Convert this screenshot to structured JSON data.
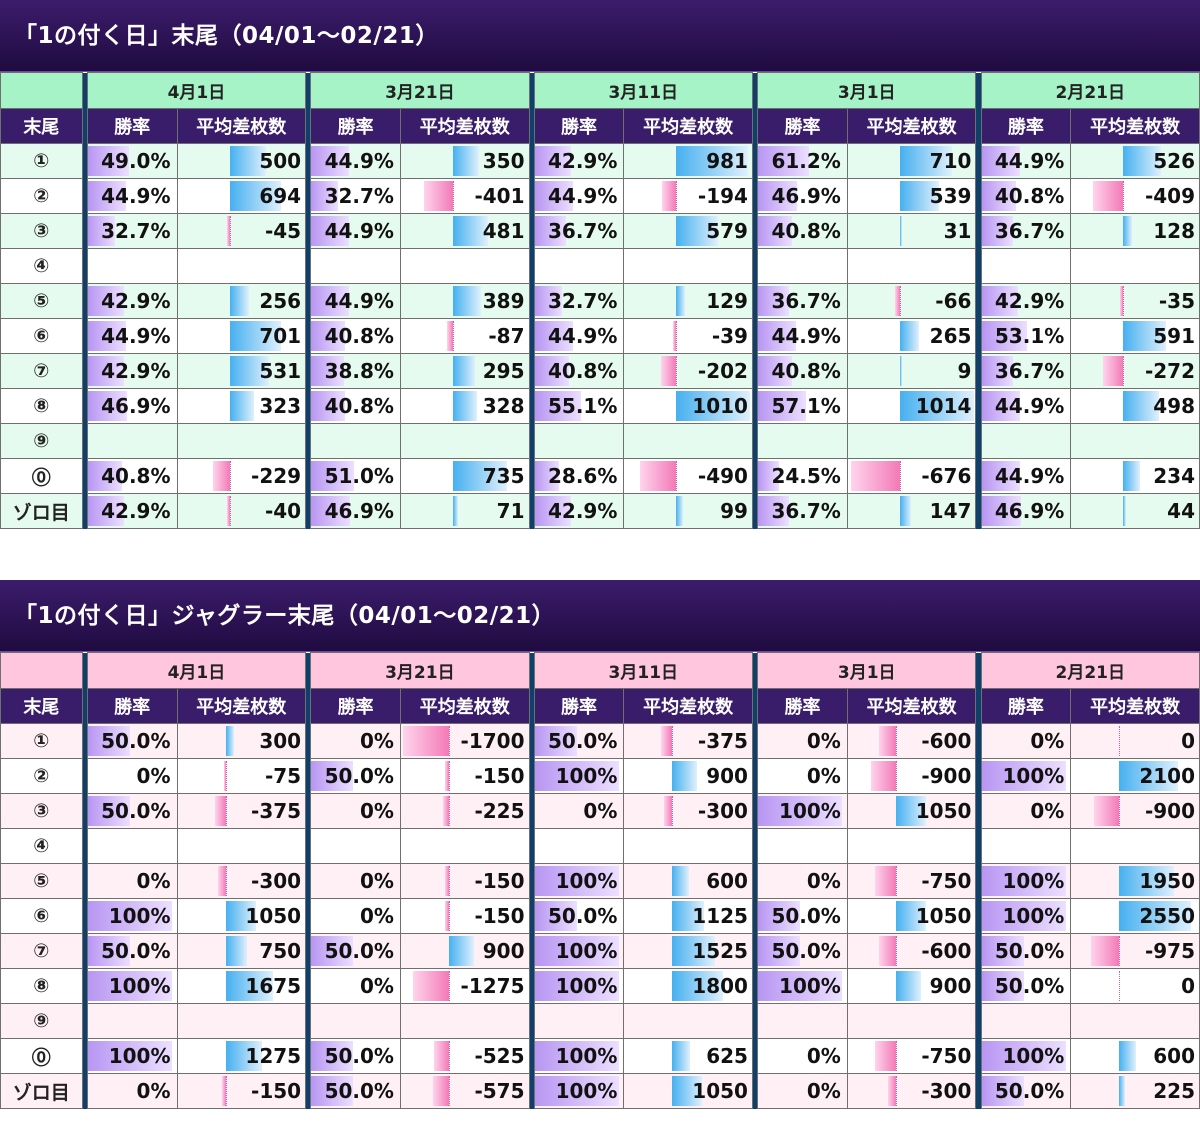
{
  "colors": {
    "title_bg": "#2a1256",
    "header_bg": "#3a1d6a",
    "separator": "#0f3f6b",
    "rate_bar": "#b896f2",
    "pos_bar": "#46b0f0",
    "neg_bar": "#f27ab7",
    "s1_date_bg": "#a5f3c7",
    "s2_date_bg": "#ffc6de"
  },
  "sections": [
    {
      "title": "「1の付く日」末尾（04/01〜02/21）",
      "dates": [
        "4月1日",
        "3月21日",
        "3月11日",
        "3月1日",
        "2月21日"
      ],
      "header": {
        "label": "末尾",
        "rate": "勝率",
        "diff": "平均差枚数"
      },
      "max_abs_diff": 1014,
      "rows": [
        {
          "label": "①",
          "cells": [
            [
              "49.0%",
              500
            ],
            [
              "44.9%",
              350
            ],
            [
              "42.9%",
              981
            ],
            [
              "61.2%",
              710
            ],
            [
              "44.9%",
              526
            ]
          ]
        },
        {
          "label": "②",
          "cells": [
            [
              "44.9%",
              694
            ],
            [
              "32.7%",
              -401
            ],
            [
              "44.9%",
              -194
            ],
            [
              "46.9%",
              539
            ],
            [
              "40.8%",
              -409
            ]
          ]
        },
        {
          "label": "③",
          "cells": [
            [
              "32.7%",
              -45
            ],
            [
              "44.9%",
              481
            ],
            [
              "36.7%",
              579
            ],
            [
              "40.8%",
              31
            ],
            [
              "36.7%",
              128
            ]
          ]
        },
        {
          "label": "④",
          "cells": []
        },
        {
          "label": "⑤",
          "cells": [
            [
              "42.9%",
              256
            ],
            [
              "44.9%",
              389
            ],
            [
              "32.7%",
              129
            ],
            [
              "36.7%",
              -66
            ],
            [
              "42.9%",
              -35
            ]
          ]
        },
        {
          "label": "⑥",
          "cells": [
            [
              "44.9%",
              701
            ],
            [
              "40.8%",
              -87
            ],
            [
              "44.9%",
              -39
            ],
            [
              "44.9%",
              265
            ],
            [
              "53.1%",
              591
            ]
          ]
        },
        {
          "label": "⑦",
          "cells": [
            [
              "42.9%",
              531
            ],
            [
              "38.8%",
              295
            ],
            [
              "40.8%",
              -202
            ],
            [
              "40.8%",
              9
            ],
            [
              "36.7%",
              -272
            ]
          ]
        },
        {
          "label": "⑧",
          "cells": [
            [
              "46.9%",
              323
            ],
            [
              "40.8%",
              328
            ],
            [
              "55.1%",
              1010
            ],
            [
              "57.1%",
              1014
            ],
            [
              "44.9%",
              498
            ]
          ]
        },
        {
          "label": "⑨",
          "cells": []
        },
        {
          "label": "⓪",
          "cells": [
            [
              "40.8%",
              -229
            ],
            [
              "51.0%",
              735
            ],
            [
              "28.6%",
              -490
            ],
            [
              "24.5%",
              -676
            ],
            [
              "44.9%",
              234
            ]
          ]
        },
        {
          "label": "ゾロ目",
          "cells": [
            [
              "42.9%",
              -40
            ],
            [
              "46.9%",
              71
            ],
            [
              "42.9%",
              99
            ],
            [
              "36.7%",
              147
            ],
            [
              "46.9%",
              44
            ]
          ]
        }
      ]
    },
    {
      "title": "「1の付く日」ジャグラー末尾（04/01〜02/21）",
      "dates": [
        "4月1日",
        "3月21日",
        "3月11日",
        "3月1日",
        "2月21日"
      ],
      "header": {
        "label": "末尾",
        "rate": "勝率",
        "diff": "平均差枚数"
      },
      "max_abs_diff": 2550,
      "rows": [
        {
          "label": "①",
          "cells": [
            [
              "50.0%",
              300
            ],
            [
              "0%",
              -1700
            ],
            [
              "50.0%",
              -375
            ],
            [
              "0%",
              -600
            ],
            [
              "0%",
              0
            ]
          ]
        },
        {
          "label": "②",
          "cells": [
            [
              "0%",
              -75
            ],
            [
              "50.0%",
              -150
            ],
            [
              "100%",
              900
            ],
            [
              "0%",
              -900
            ],
            [
              "100%",
              2100
            ]
          ]
        },
        {
          "label": "③",
          "cells": [
            [
              "50.0%",
              -375
            ],
            [
              "0%",
              -225
            ],
            [
              "0%",
              -300
            ],
            [
              "100%",
              1050
            ],
            [
              "0%",
              -900
            ]
          ]
        },
        {
          "label": "④",
          "cells": []
        },
        {
          "label": "⑤",
          "cells": [
            [
              "0%",
              -300
            ],
            [
              "0%",
              -150
            ],
            [
              "100%",
              600
            ],
            [
              "0%",
              -750
            ],
            [
              "100%",
              1950
            ]
          ]
        },
        {
          "label": "⑥",
          "cells": [
            [
              "100%",
              1050
            ],
            [
              "0%",
              -150
            ],
            [
              "50.0%",
              1125
            ],
            [
              "50.0%",
              1050
            ],
            [
              "100%",
              2550
            ]
          ]
        },
        {
          "label": "⑦",
          "cells": [
            [
              "50.0%",
              750
            ],
            [
              "50.0%",
              900
            ],
            [
              "100%",
              1525
            ],
            [
              "50.0%",
              -600
            ],
            [
              "50.0%",
              -975
            ]
          ]
        },
        {
          "label": "⑧",
          "cells": [
            [
              "100%",
              1675
            ],
            [
              "0%",
              -1275
            ],
            [
              "100%",
              1800
            ],
            [
              "100%",
              900
            ],
            [
              "50.0%",
              0
            ]
          ]
        },
        {
          "label": "⑨",
          "cells": []
        },
        {
          "label": "⓪",
          "cells": [
            [
              "100%",
              1275
            ],
            [
              "50.0%",
              -525
            ],
            [
              "100%",
              625
            ],
            [
              "0%",
              -750
            ],
            [
              "100%",
              600
            ]
          ]
        },
        {
          "label": "ゾロ目",
          "cells": [
            [
              "0%",
              -150
            ],
            [
              "50.0%",
              -575
            ],
            [
              "100%",
              1050
            ],
            [
              "0%",
              -300
            ],
            [
              "50.0%",
              225
            ]
          ]
        }
      ]
    }
  ]
}
